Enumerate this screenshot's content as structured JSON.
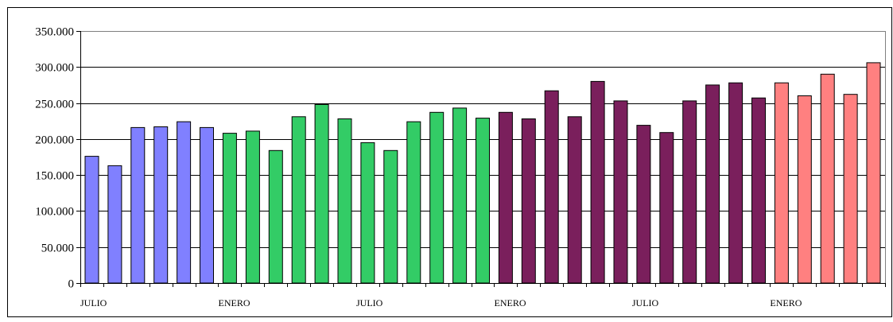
{
  "chart_data": {
    "type": "bar",
    "title": "",
    "xlabel": "",
    "ylabel": "",
    "ylim": [
      0,
      350000
    ],
    "yticks": [
      0,
      50000,
      100000,
      150000,
      200000,
      250000,
      300000,
      350000
    ],
    "ytick_labels": [
      "0",
      "50.000",
      "100.000",
      "150.000",
      "200.000",
      "250.000",
      "300.000",
      "350.000"
    ],
    "grid": true,
    "legend": "none",
    "x_tick_labels": [
      {
        "index": 0,
        "label": "JULIO"
      },
      {
        "index": 6,
        "label": "ENERO"
      },
      {
        "index": 12,
        "label": "JULIO"
      },
      {
        "index": 18,
        "label": "ENERO"
      },
      {
        "index": 24,
        "label": "JULIO"
      },
      {
        "index": 30,
        "label": "ENERO"
      }
    ],
    "values": [
      176000,
      163000,
      216000,
      217000,
      224000,
      216000,
      208000,
      211000,
      184000,
      231000,
      248000,
      228000,
      195000,
      184000,
      224000,
      237000,
      243000,
      229000,
      237000,
      228000,
      267000,
      231000,
      280000,
      253000,
      219000,
      209000,
      253000,
      275000,
      278000,
      257000,
      278000,
      260000,
      290000,
      262000,
      306000
    ],
    "bar_colors": [
      "#8080ff",
      "#8080ff",
      "#8080ff",
      "#8080ff",
      "#8080ff",
      "#8080ff",
      "#33cc66",
      "#33cc66",
      "#33cc66",
      "#33cc66",
      "#33cc66",
      "#33cc66",
      "#33cc66",
      "#33cc66",
      "#33cc66",
      "#33cc66",
      "#33cc66",
      "#33cc66",
      "#7a1f5c",
      "#7a1f5c",
      "#7a1f5c",
      "#7a1f5c",
      "#7a1f5c",
      "#7a1f5c",
      "#7a1f5c",
      "#7a1f5c",
      "#7a1f5c",
      "#7a1f5c",
      "#7a1f5c",
      "#7a1f5c",
      "#ff8080",
      "#ff8080",
      "#ff8080",
      "#ff8080",
      "#ff8080"
    ]
  }
}
